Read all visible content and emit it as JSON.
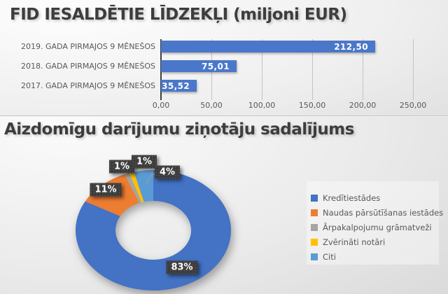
{
  "style_colors": {
    "title_text": "#3d3d3d",
    "axis_text": "#595959",
    "bar_blue": "#4a77c9",
    "grid_line": "#c3c3c3",
    "data_label_box": "#3b3b3b",
    "data_label_text": "#ffffff"
  },
  "chart_data": [
    {
      "type": "bar",
      "orientation": "horizontal",
      "title": "FID IESALDĒTIE LĪDZEKĻI (miljoni EUR)",
      "categories": [
        "2019. GADA PIRMAJOS 9 MĒNEŠOS",
        "2018. GADA PIRMAJOS 9 MĒNEŠOS",
        "2017. GADA PIRMAJOS 9 MĒNEŠOS"
      ],
      "values": [
        212.5,
        75.01,
        35.52
      ],
      "value_labels": [
        "212,50",
        "75,01",
        "35,52"
      ],
      "x_ticks": [
        "0,00",
        "50,00",
        "100,00",
        "150,00",
        "200,00",
        "250,00"
      ],
      "xlim": [
        0,
        250
      ],
      "grid": true,
      "legend": false,
      "bar_color": "#4a77c9"
    },
    {
      "type": "pie",
      "subtype": "donut",
      "title": "Aizdomīgu darījumu ziņotāju sadalījums",
      "legend_position": "right",
      "start_angle_deg": 0,
      "direction": "clockwise",
      "slices": [
        {
          "name": "Kredītiestādes",
          "value_pct": 83,
          "label": "83%",
          "color": "#4472c4"
        },
        {
          "name": "Naudas pārsūtīšanas iestādes",
          "value_pct": 11,
          "label": "11%",
          "color": "#ed7d31"
        },
        {
          "name": "Ārpakalpojumu grāmatveži",
          "value_pct": 1,
          "label": "1%",
          "color": "#a5a5a5"
        },
        {
          "name": "Zvērināti notāri",
          "value_pct": 1,
          "label": "1%",
          "color": "#ffc000"
        },
        {
          "name": "Citi",
          "value_pct": 4,
          "label": "4%",
          "color": "#5b9bd5"
        }
      ]
    }
  ]
}
